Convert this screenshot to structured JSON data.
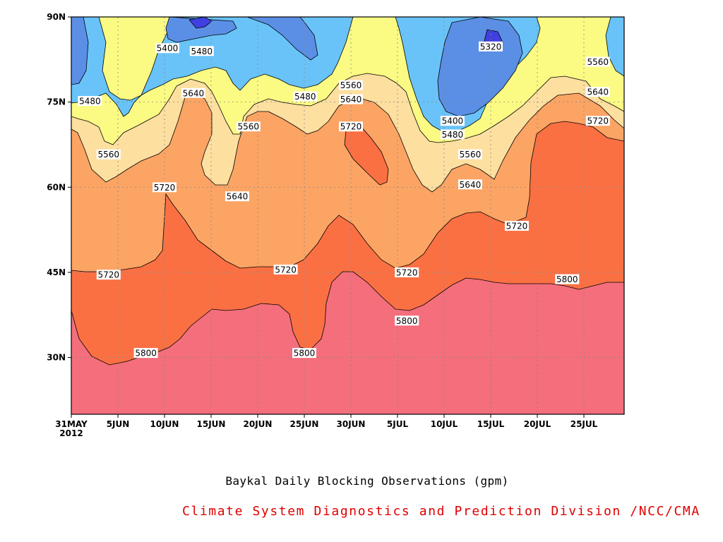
{
  "chart_data": {
    "type": "contour",
    "title": "Baykal Daily Blocking Observations (gpm)",
    "credit": "Climate System Diagnostics and Prediction Division /NCC/CMA",
    "x_ticks": [
      "5JUN",
      "10JUN",
      "15JUN",
      "20JUN",
      "25JUN",
      "30JUN",
      "5JUL",
      "10JUL",
      "15JUL",
      "20JUL",
      "25JUL"
    ],
    "x_start_label": "31MAY",
    "x_start_year": "2012",
    "x_range": [
      "31MAY2012",
      "29JUL2012"
    ],
    "y_ticks": [
      "30N",
      "45N",
      "60N",
      "75N",
      "90N"
    ],
    "y_range": [
      20,
      90
    ],
    "contour_levels": [
      5240,
      5320,
      5400,
      5480,
      5560,
      5640,
      5720,
      5800
    ],
    "level_colors": {
      "below_5320": "#4040e0",
      "5320_5400": "#5b8fe6",
      "5400_5480": "#69c3f8",
      "5480_5560": "#fbfb84",
      "5560_5640": "#fddfa0",
      "5640_5720": "#fca464",
      "5720_5800": "#fb7043",
      "above_5800": "#f46e7c"
    },
    "contour_labels": [
      {
        "value": "5400",
        "day": 10.3,
        "lat": 84.5
      },
      {
        "value": "5480",
        "day": 14.0,
        "lat": 84.0
      },
      {
        "value": "5320",
        "day": 45.0,
        "lat": 84.8
      },
      {
        "value": "5480",
        "day": 2.0,
        "lat": 75.2
      },
      {
        "value": "5640",
        "day": 13.1,
        "lat": 76.6
      },
      {
        "value": "5480",
        "day": 25.1,
        "lat": 76.0
      },
      {
        "value": "5560",
        "day": 30.0,
        "lat": 78.0
      },
      {
        "value": "5640",
        "day": 30.0,
        "lat": 75.5
      },
      {
        "value": "5560",
        "day": 56.5,
        "lat": 82.1
      },
      {
        "value": "5640",
        "day": 56.5,
        "lat": 76.8
      },
      {
        "value": "5720",
        "day": 56.5,
        "lat": 71.7
      },
      {
        "value": "5560",
        "day": 19.0,
        "lat": 70.7
      },
      {
        "value": "5720",
        "day": 30.0,
        "lat": 70.7
      },
      {
        "value": "5400",
        "day": 40.9,
        "lat": 71.7
      },
      {
        "value": "5480",
        "day": 40.9,
        "lat": 69.3
      },
      {
        "value": "5560",
        "day": 4.0,
        "lat": 65.8
      },
      {
        "value": "5560",
        "day": 42.8,
        "lat": 65.8
      },
      {
        "value": "5720",
        "day": 10.0,
        "lat": 60.0
      },
      {
        "value": "5640",
        "day": 42.8,
        "lat": 60.5
      },
      {
        "value": "5640",
        "day": 17.8,
        "lat": 58.4
      },
      {
        "value": "5720",
        "day": 47.8,
        "lat": 53.2
      },
      {
        "value": "5720",
        "day": 4.0,
        "lat": 44.6
      },
      {
        "value": "5720",
        "day": 23.0,
        "lat": 45.5
      },
      {
        "value": "5720",
        "day": 36.0,
        "lat": 45.0
      },
      {
        "value": "5800",
        "day": 53.2,
        "lat": 43.8
      },
      {
        "value": "5800",
        "day": 36.0,
        "lat": 36.5
      },
      {
        "value": "5800",
        "day": 8.0,
        "lat": 30.8
      },
      {
        "value": "5800",
        "day": 25.0,
        "lat": 30.8
      }
    ]
  }
}
